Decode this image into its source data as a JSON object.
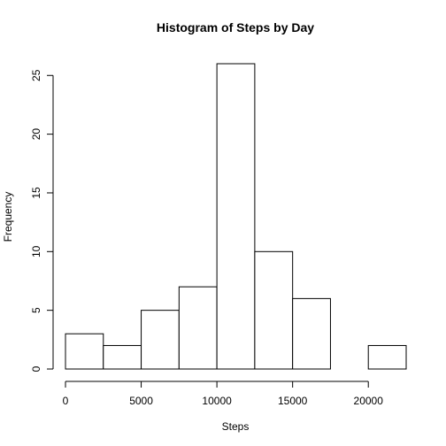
{
  "chart_data": {
    "type": "bar",
    "title": "Histogram of Steps by Day",
    "xlabel": "Steps",
    "ylabel": "Frequency",
    "bins": [
      {
        "from": 0,
        "to": 2500,
        "count": 3
      },
      {
        "from": 2500,
        "to": 5000,
        "count": 2
      },
      {
        "from": 5000,
        "to": 7500,
        "count": 5
      },
      {
        "from": 7500,
        "to": 10000,
        "count": 7
      },
      {
        "from": 10000,
        "to": 12500,
        "count": 26
      },
      {
        "from": 12500,
        "to": 15000,
        "count": 10
      },
      {
        "from": 15000,
        "to": 17500,
        "count": 6
      },
      {
        "from": 17500,
        "to": 20000,
        "count": 0
      },
      {
        "from": 20000,
        "to": 22500,
        "count": 2
      }
    ],
    "xlim": [
      0,
      22500
    ],
    "ylim": [
      0,
      26
    ],
    "x_ticks": [
      "0",
      "5000",
      "10000",
      "15000",
      "20000"
    ],
    "y_ticks": [
      "0",
      "5",
      "10",
      "15",
      "20",
      "25"
    ],
    "bar_fill": "#ffffff",
    "bar_stroke": "#000000",
    "grid": false,
    "legend": "none"
  }
}
